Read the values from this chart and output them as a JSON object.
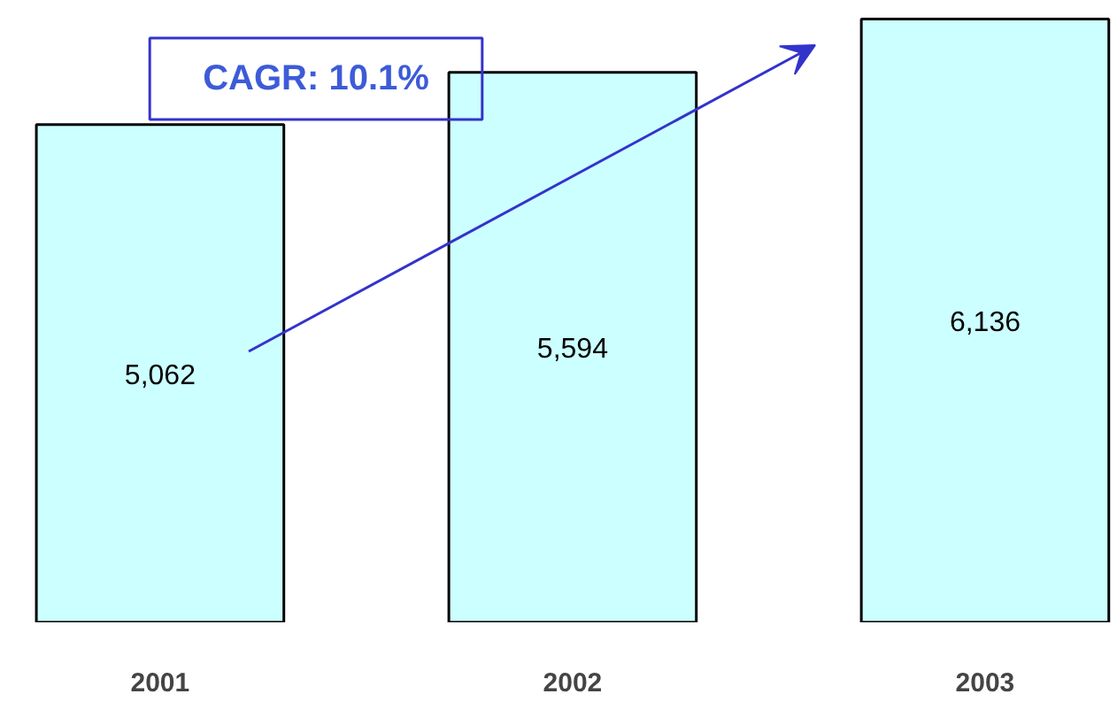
{
  "chart_data": {
    "type": "bar",
    "categories": [
      "2001",
      "2002",
      "2003"
    ],
    "values": [
      5062,
      5594,
      6136
    ],
    "color": "#ccffff",
    "data_labels": true,
    "value_labels": [
      "5,062",
      "5,594",
      "6,136"
    ],
    "grid": false,
    "annotations": [
      "CAGR: 10.1%"
    ]
  }
}
